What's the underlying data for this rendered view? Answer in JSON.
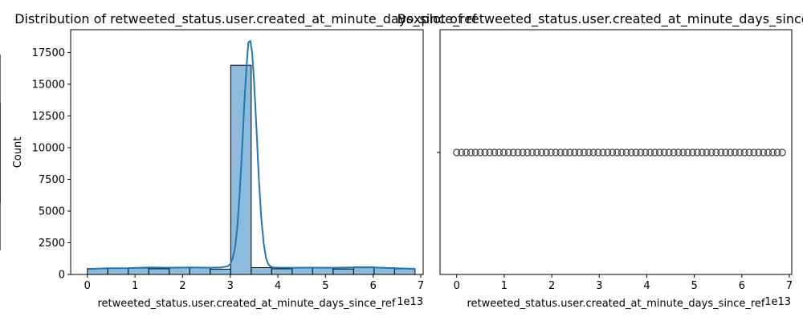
{
  "chart_data": [
    {
      "type": "bar",
      "title": "Distribution of retweeted_status.user.created_at_minute_days_since_ref",
      "xlabel": "retweeted_status.user.created_at_minute_days_since_ref",
      "ylabel": "Count",
      "x_offset_text": "1e13",
      "xlim": [
        -0.35,
        7.05
      ],
      "ylim": [
        0,
        19300
      ],
      "xticks": [
        0,
        1,
        2,
        3,
        4,
        5,
        6,
        7
      ],
      "xtick_labels": [
        "0",
        "1",
        "2",
        "3",
        "4",
        "5",
        "6",
        "7"
      ],
      "yticks": [
        0,
        2500,
        5000,
        7500,
        10000,
        12500,
        15000,
        17500
      ],
      "ytick_labels": [
        "0",
        "2500",
        "5000",
        "7500",
        "10000",
        "12500",
        "15000",
        "17500"
      ],
      "bin_edges": [
        0,
        0.43,
        0.86,
        1.29,
        1.72,
        2.15,
        2.58,
        3.01,
        3.44,
        3.87,
        4.3,
        4.73,
        5.16,
        5.59,
        6.02,
        6.45,
        6.88
      ],
      "values": [
        470,
        480,
        500,
        450,
        560,
        540,
        420,
        16500,
        540,
        450,
        520,
        510,
        430,
        590,
        530,
        440
      ],
      "bar_color": "#8ebbdc",
      "bar_edge_color": "#000000",
      "kde_color": "#1f77b4",
      "kde": {
        "x": [
          0.0,
          0.43,
          0.86,
          1.29,
          1.72,
          2.15,
          2.58,
          2.8,
          2.95,
          3.0,
          3.05,
          3.1,
          3.15,
          3.2,
          3.25,
          3.3,
          3.35,
          3.38,
          3.42,
          3.46,
          3.5,
          3.55,
          3.6,
          3.65,
          3.7,
          3.75,
          3.8,
          3.85,
          3.9,
          4.0,
          4.3,
          4.73,
          5.16,
          5.59,
          6.02,
          6.45,
          6.88
        ],
        "y": [
          430,
          490,
          500,
          560,
          530,
          560,
          530,
          560,
          650,
          800,
          1250,
          2100,
          3800,
          6500,
          10000,
          13800,
          16800,
          18300,
          18400,
          17500,
          15200,
          11500,
          7600,
          4500,
          2500,
          1300,
          800,
          620,
          560,
          540,
          530,
          540,
          530,
          560,
          550,
          490,
          450
        ]
      },
      "grid": false
    },
    {
      "type": "box",
      "title": "Boxplot of retweeted_status.user.created_at_minute_days_since_ref",
      "xlabel": "retweeted_status.user.created_at_minute_days_since_ref",
      "x_offset_text": "1e13",
      "xlim": [
        -0.35,
        7.05
      ],
      "xticks": [
        0,
        1,
        2,
        3,
        4,
        5,
        6,
        7
      ],
      "xtick_labels": [
        "0",
        "1",
        "2",
        "3",
        "4",
        "5",
        "6",
        "7"
      ],
      "box": {
        "q1": 3.42,
        "median": 3.42,
        "q3": 3.42,
        "whisker_low": 3.42,
        "whisker_high": 3.42
      },
      "fliers_range": [
        0.0,
        6.85
      ],
      "flier_count": 70,
      "grid": false
    }
  ]
}
